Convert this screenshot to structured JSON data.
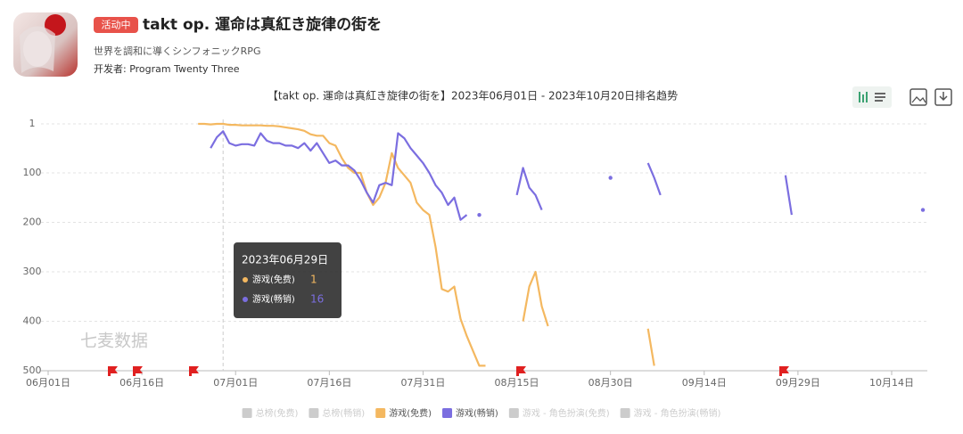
{
  "header": {
    "badge": "活动中",
    "title": "takt op. 運命は真紅き旋律の街を",
    "subtitle": "世界を調和に導くシンフォニックRPG",
    "developer": "开发者: Program Twenty Three"
  },
  "watermark": "七麦数据",
  "chart_data": {
    "type": "line",
    "title": "【takt op. 運命は真紅き旋律の街を】2023年06月01日 - 2023年10月20日排名趋势",
    "x": [
      "06月01日",
      "06月02日",
      "06月03日",
      "06月04日",
      "06月05日",
      "06月06日",
      "06月07日",
      "06月08日",
      "06月09日",
      "06月10日",
      "06月11日",
      "06月12日",
      "06月13日",
      "06月14日",
      "06月15日",
      "06月16日",
      "06月17日",
      "06月18日",
      "06月19日",
      "06月20日",
      "06月21日",
      "06月22日",
      "06月23日",
      "06月24日",
      "06月25日",
      "06月26日",
      "06月27日",
      "06月28日",
      "06月29日",
      "06月30日",
      "07月01日",
      "07月02日",
      "07月03日",
      "07月04日",
      "07月05日",
      "07月06日",
      "07月07日",
      "07月08日",
      "07月09日",
      "07月10日",
      "07月11日",
      "07月12日",
      "07月13日",
      "07月14日",
      "07月15日",
      "07月16日",
      "07月17日",
      "07月18日",
      "07月19日",
      "07月20日",
      "07月21日",
      "07月22日",
      "07月23日",
      "07月24日",
      "07月25日",
      "07月26日",
      "07月27日",
      "07月28日",
      "07月29日",
      "07月30日",
      "07月31日",
      "08月01日",
      "08月02日",
      "08月03日",
      "08月04日",
      "08月05日",
      "08月06日",
      "08月07日",
      "08月08日",
      "08月09日",
      "08月10日",
      "08月11日",
      "08月12日",
      "08月13日",
      "08月14日",
      "08月15日",
      "08月16日",
      "08月17日",
      "08月18日",
      "08月19日",
      "08月20日",
      "08月21日",
      "08月22日",
      "08月23日",
      "08月24日",
      "08月25日",
      "08月26日",
      "08月27日",
      "08月28日",
      "08月29日",
      "08月30日",
      "08月31日",
      "09月01日",
      "09月02日",
      "09月03日",
      "09月04日",
      "09月05日",
      "09月06日",
      "09月07日",
      "09月08日",
      "09月09日",
      "09月10日",
      "09月11日",
      "09月12日",
      "09月13日",
      "09月14日",
      "09月15日",
      "09月16日",
      "09月17日",
      "09月18日",
      "09月19日",
      "09月20日",
      "09月21日",
      "09月22日",
      "09月23日",
      "09月24日",
      "09月25日",
      "09月26日",
      "09月27日",
      "09月28日",
      "09月29日",
      "09月30日",
      "10月01日",
      "10月02日",
      "10月03日",
      "10月04日",
      "10月05日",
      "10月06日",
      "10月07日",
      "10月08日",
      "10月09日",
      "10月10日",
      "10月11日",
      "10月12日",
      "10月13日",
      "10月14日",
      "10月15日",
      "10月16日",
      "10月17日",
      "10月18日",
      "10月19日",
      "10月20日"
    ],
    "series": [
      {
        "name": "游戏(免费)",
        "color": "#f4b860",
        "values": [
          null,
          null,
          null,
          null,
          null,
          null,
          null,
          null,
          null,
          null,
          null,
          null,
          null,
          null,
          null,
          null,
          null,
          null,
          null,
          null,
          null,
          null,
          null,
          null,
          1,
          1,
          2,
          1,
          1,
          3,
          3,
          4,
          4,
          4,
          4,
          5,
          5,
          6,
          8,
          10,
          12,
          15,
          22,
          25,
          25,
          40,
          45,
          70,
          90,
          100,
          100,
          140,
          165,
          150,
          120,
          60,
          90,
          105,
          120,
          160,
          175,
          185,
          250,
          335,
          340,
          330,
          395,
          430,
          460,
          490,
          490,
          null,
          null,
          null,
          null,
          null,
          400,
          330,
          300,
          370,
          410,
          null,
          null,
          null,
          null,
          null,
          null,
          null,
          null,
          null,
          null,
          null,
          null,
          null,
          null,
          null,
          415,
          490,
          null,
          null,
          null,
          null,
          null,
          null,
          null,
          null,
          null,
          null,
          null,
          null,
          null,
          null,
          null,
          null,
          null,
          null,
          null,
          null,
          null,
          null,
          null,
          null,
          null,
          null,
          null,
          null,
          null,
          null,
          null,
          null,
          null,
          null,
          null,
          null,
          null,
          null,
          null,
          null,
          null,
          null,
          null,
          null
        ]
      },
      {
        "name": "游戏(畅销)",
        "color": "#7b6ee0",
        "values": [
          null,
          null,
          null,
          null,
          null,
          null,
          null,
          null,
          null,
          null,
          null,
          null,
          null,
          null,
          null,
          null,
          null,
          null,
          null,
          null,
          null,
          null,
          null,
          null,
          null,
          null,
          50,
          28,
          16,
          40,
          45,
          42,
          42,
          45,
          20,
          35,
          40,
          40,
          45,
          45,
          50,
          40,
          55,
          40,
          60,
          80,
          75,
          85,
          85,
          95,
          115,
          140,
          160,
          125,
          120,
          125,
          20,
          30,
          50,
          65,
          80,
          100,
          125,
          140,
          165,
          150,
          195,
          185,
          null,
          185,
          null,
          null,
          null,
          null,
          null,
          145,
          90,
          130,
          145,
          175,
          null,
          null,
          null,
          null,
          null,
          null,
          null,
          null,
          null,
          null,
          110,
          null,
          null,
          null,
          null,
          null,
          80,
          110,
          145,
          null,
          null,
          null,
          null,
          null,
          null,
          null,
          null,
          null,
          null,
          null,
          null,
          null,
          null,
          null,
          null,
          null,
          null,
          null,
          105,
          185,
          null,
          null,
          null,
          null,
          null,
          null,
          null,
          null,
          null,
          null,
          null,
          null,
          null,
          null,
          null,
          null,
          null,
          null,
          null,
          null,
          175,
          null
        ]
      }
    ],
    "hidden_series": [
      "总榜(免费)",
      "总榜(畅销)",
      "游戏 - 角色扮演(免费)",
      "游戏 - 角色扮演(畅销)"
    ],
    "ylim": [
      1,
      500
    ],
    "y_inverted": true,
    "yticks": [
      1,
      100,
      200,
      300,
      400,
      500
    ],
    "xticks": [
      "06月01日",
      "06月16日",
      "07月01日",
      "07月16日",
      "07月31日",
      "08月15日",
      "08月30日",
      "09月14日",
      "09月29日",
      "10月14日"
    ],
    "grid": true,
    "tooltip": {
      "title": "2023年06月29日",
      "index": 28
    }
  }
}
